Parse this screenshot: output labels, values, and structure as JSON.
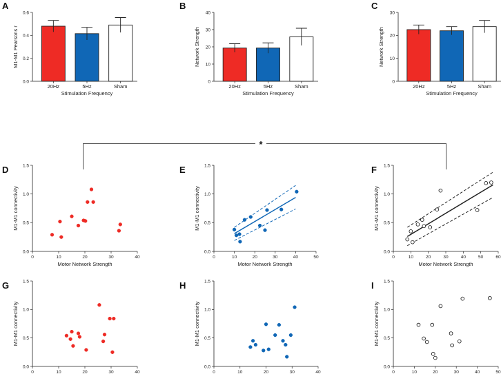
{
  "figure": {
    "significance_marker": "*",
    "comparison": [
      "E",
      "F"
    ],
    "colors": {
      "20Hz": "#ee2b25",
      "5Hz": "#1067b6",
      "Sham": "#ffffff",
      "edge": "#222222"
    }
  },
  "chart_data": [
    {
      "id": "A",
      "letter": "A",
      "type": "bar",
      "xlabel": "Stimulation Frequency",
      "ylabel": "M1-M1 Pearsons r",
      "ylim": [
        0,
        0.6
      ],
      "yticks": [
        0.0,
        0.2,
        0.4,
        0.6
      ],
      "ytick_labels": [
        "0.0",
        "0.2",
        "0.4",
        "0.6"
      ],
      "categories": [
        "20Hz",
        "5Hz",
        "Sham"
      ],
      "values": [
        0.48,
        0.415,
        0.49
      ],
      "errors": [
        0.05,
        0.055,
        0.065
      ]
    },
    {
      "id": "B",
      "letter": "B",
      "type": "bar",
      "xlabel": "Stimulation Frequency",
      "ylabel": "Network Strength",
      "ylim": [
        0,
        40
      ],
      "yticks": [
        0,
        10,
        20,
        30,
        40
      ],
      "ytick_labels": [
        "0",
        "10",
        "20",
        "30",
        "40"
      ],
      "categories": [
        "20Hz",
        "5Hz",
        "Sham"
      ],
      "values": [
        19.3,
        19.3,
        25.8
      ],
      "errors": [
        2.5,
        3.0,
        5.0
      ]
    },
    {
      "id": "C",
      "letter": "C",
      "type": "bar",
      "xlabel": "Stimulation Frequency",
      "ylabel": "Network Strength",
      "ylim": [
        0,
        30
      ],
      "yticks": [
        0,
        10,
        20,
        30
      ],
      "ytick_labels": [
        "0",
        "10",
        "20",
        "30"
      ],
      "categories": [
        "20Hz",
        "5Hz",
        "Sham"
      ],
      "values": [
        22.5,
        22.0,
        23.8
      ],
      "errors": [
        2.0,
        1.8,
        2.7
      ]
    },
    {
      "id": "D",
      "letter": "D",
      "type": "scatter",
      "series_color": "20Hz",
      "xlabel": "Motor Network Strength",
      "ylabel": "M1-M1 connectivity",
      "xlim": [
        0,
        40
      ],
      "xticks": [
        0,
        10,
        20,
        30,
        40
      ],
      "xtick_labels": [
        "0",
        "10",
        "20",
        "30",
        "40"
      ],
      "ylim": [
        0,
        1.5
      ],
      "yticks": [
        0.0,
        0.5,
        1.0,
        1.5
      ],
      "ytick_labels": [
        "0.0",
        "0.5",
        "1.0",
        "1.5"
      ],
      "points": [
        [
          7.5,
          0.29
        ],
        [
          10.5,
          0.52
        ],
        [
          11,
          0.25
        ],
        [
          15,
          0.61
        ],
        [
          17.5,
          0.45
        ],
        [
          19.5,
          0.54
        ],
        [
          20.2,
          0.53
        ],
        [
          21,
          0.86
        ],
        [
          23.2,
          0.86
        ],
        [
          22.5,
          1.08
        ],
        [
          33,
          0.36
        ],
        [
          33.5,
          0.47
        ]
      ]
    },
    {
      "id": "E",
      "letter": "E",
      "type": "scatter",
      "series_color": "5Hz",
      "xlabel": "Motor Network Strength",
      "ylabel": "M1-M1 connectivity",
      "xlim": [
        0,
        50
      ],
      "xticks": [
        0,
        10,
        20,
        30,
        40,
        50
      ],
      "xtick_labels": [
        "0",
        "10",
        "20",
        "30",
        "40",
        "50"
      ],
      "ylim": [
        0,
        1.5
      ],
      "yticks": [
        0.0,
        0.5,
        1.0,
        1.5
      ],
      "ytick_labels": [
        "0.0",
        "0.5",
        "1.0",
        "1.5"
      ],
      "points": [
        [
          10,
          0.38
        ],
        [
          11,
          0.28
        ],
        [
          12.5,
          0.3
        ],
        [
          12.8,
          0.17
        ],
        [
          15,
          0.55
        ],
        [
          18,
          0.6
        ],
        [
          22.5,
          0.45
        ],
        [
          25,
          0.37
        ],
        [
          26,
          0.72
        ],
        [
          33,
          0.73
        ],
        [
          40.5,
          1.04
        ]
      ],
      "fit": {
        "x": [
          10,
          40
        ],
        "y": [
          0.31,
          0.94
        ],
        "ci_upper": [
          0.42,
          1.15
        ],
        "ci_lower": [
          0.19,
          0.74
        ]
      }
    },
    {
      "id": "F",
      "letter": "F",
      "type": "scatter",
      "series_color": "Sham",
      "xlabel": "Motor Network Strength",
      "ylabel": "M1-M1 connectivity",
      "xlim": [
        0,
        60
      ],
      "xticks": [
        0,
        10,
        20,
        30,
        40,
        50,
        60
      ],
      "xtick_labels": [
        "0",
        "10",
        "20",
        "30",
        "40",
        "50",
        "60"
      ],
      "ylim": [
        0,
        1.5
      ],
      "yticks": [
        0.0,
        0.5,
        1.0,
        1.5
      ],
      "ytick_labels": [
        "0.0",
        "0.5",
        "1.0",
        "1.5"
      ],
      "points": [
        [
          8,
          0.21
        ],
        [
          10,
          0.35
        ],
        [
          11,
          0.16
        ],
        [
          14,
          0.47
        ],
        [
          16.5,
          0.55
        ],
        [
          17.5,
          0.44
        ],
        [
          21,
          0.42
        ],
        [
          25,
          0.73
        ],
        [
          27,
          1.06
        ],
        [
          48,
          0.72
        ],
        [
          53,
          1.19
        ],
        [
          56,
          1.2
        ]
      ],
      "fit": {
        "x": [
          8,
          57
        ],
        "y": [
          0.26,
          1.16
        ],
        "ci_upper": [
          0.42,
          1.38
        ],
        "ci_lower": [
          0.1,
          0.94
        ]
      }
    },
    {
      "id": "G",
      "letter": "G",
      "type": "scatter",
      "series_color": "20Hz",
      "xlabel": "DMN Strength",
      "ylabel": "M1-M1 connectivity",
      "xlim": [
        0,
        40
      ],
      "xticks": [
        0,
        10,
        20,
        30,
        40
      ],
      "xtick_labels": [
        "0",
        "10",
        "20",
        "30",
        "40"
      ],
      "ylim": [
        0,
        1.5
      ],
      "yticks": [
        0.0,
        0.5,
        1.0,
        1.5
      ],
      "ytick_labels": [
        "0.0",
        "0.5",
        "1.0",
        "1.5"
      ],
      "points": [
        [
          13,
          0.54
        ],
        [
          14.5,
          0.48
        ],
        [
          15,
          0.61
        ],
        [
          15.5,
          0.36
        ],
        [
          17.5,
          0.58
        ],
        [
          18,
          0.52
        ],
        [
          20.5,
          0.29
        ],
        [
          25.5,
          1.08
        ],
        [
          27,
          0.44
        ],
        [
          27.5,
          0.56
        ],
        [
          29.5,
          0.84
        ],
        [
          30.5,
          0.25
        ],
        [
          31,
          0.84
        ]
      ]
    },
    {
      "id": "H",
      "letter": "H",
      "type": "scatter",
      "series_color": "5Hz",
      "xlabel": "DMN Strength",
      "ylabel": "M1-M1 connectivity",
      "xlim": [
        0,
        40
      ],
      "xticks": [
        0,
        10,
        20,
        30,
        40
      ],
      "xtick_labels": [
        "0",
        "10",
        "20",
        "30",
        "40"
      ],
      "ylim": [
        0,
        1.5
      ],
      "yticks": [
        0.0,
        0.5,
        1.0,
        1.5
      ],
      "ytick_labels": [
        "0.0",
        "0.5",
        "1.0",
        "1.5"
      ],
      "points": [
        [
          14,
          0.34
        ],
        [
          15,
          0.45
        ],
        [
          16,
          0.38
        ],
        [
          19,
          0.28
        ],
        [
          20,
          0.74
        ],
        [
          21,
          0.3
        ],
        [
          23.5,
          0.55
        ],
        [
          25,
          0.73
        ],
        [
          26.5,
          0.45
        ],
        [
          27.5,
          0.38
        ],
        [
          28,
          0.17
        ],
        [
          29.5,
          0.55
        ],
        [
          31,
          1.04
        ]
      ]
    },
    {
      "id": "I",
      "letter": "I",
      "type": "scatter",
      "series_color": "Sham",
      "xlabel": "DMN Strength",
      "ylabel": "M1-M1 connectivity",
      "xlim": [
        0,
        50
      ],
      "xticks": [
        0,
        10,
        20,
        30,
        40,
        50
      ],
      "xtick_labels": [
        "0",
        "10",
        "20",
        "30",
        "40",
        "50"
      ],
      "ylim": [
        0,
        1.5
      ],
      "yticks": [
        0.0,
        0.5,
        1.0,
        1.5
      ],
      "ytick_labels": [
        "0.0",
        "0.5",
        "1.0",
        "1.5"
      ],
      "points": [
        [
          12,
          0.73
        ],
        [
          14.5,
          0.49
        ],
        [
          16,
          0.43
        ],
        [
          18.5,
          0.73
        ],
        [
          19,
          0.22
        ],
        [
          20,
          0.15
        ],
        [
          22.5,
          1.06
        ],
        [
          27.5,
          0.58
        ],
        [
          28,
          0.37
        ],
        [
          31.5,
          0.44
        ],
        [
          33,
          1.19
        ],
        [
          46,
          1.2
        ]
      ]
    }
  ]
}
